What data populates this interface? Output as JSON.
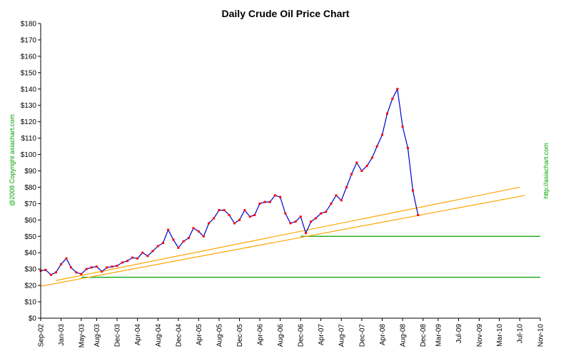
{
  "chart_data": {
    "type": "line",
    "title": "Daily Crude Oil Price Chart",
    "xlabel": "",
    "ylabel": "",
    "ylim": [
      0,
      180
    ],
    "yticks": [
      0,
      10,
      20,
      30,
      40,
      50,
      60,
      70,
      80,
      90,
      100,
      110,
      120,
      130,
      140,
      150,
      160,
      170,
      180
    ],
    "ytick_labels": [
      "$0",
      "$10",
      "$20",
      "$30",
      "$40",
      "$50",
      "$60",
      "$70",
      "$80",
      "$90",
      "$100",
      "$110",
      "$120",
      "$130",
      "$140",
      "$150",
      "$160",
      "$170",
      "$180"
    ],
    "xlim": [
      "2002-09-01",
      "2010-11-01"
    ],
    "xtick_labels": [
      "Sep-02",
      "Jan-03",
      "May-03",
      "Aug-03",
      "Dec-03",
      "Apr-04",
      "Aug-04",
      "Dec-04",
      "Apr-05",
      "Aug-05",
      "Dec-05",
      "Apr-06",
      "Aug-06",
      "Dec-06",
      "Apr-07",
      "Aug-07",
      "Dec-07",
      "Apr-08",
      "Aug-08",
      "Dec-08",
      "Mar-09",
      "Jul-09",
      "Nov-09",
      "Mar-10",
      "Jul-10",
      "Nov-10"
    ],
    "xtick_dates": [
      "2002-09-01",
      "2003-01-01",
      "2003-05-01",
      "2003-08-01",
      "2003-12-01",
      "2004-04-01",
      "2004-08-01",
      "2004-12-01",
      "2005-04-01",
      "2005-08-01",
      "2005-12-01",
      "2006-04-01",
      "2006-08-01",
      "2006-12-01",
      "2007-04-01",
      "2007-08-01",
      "2007-12-01",
      "2008-04-01",
      "2008-08-01",
      "2008-12-01",
      "2009-03-01",
      "2009-07-01",
      "2009-11-01",
      "2010-03-01",
      "2010-07-01",
      "2010-11-01"
    ],
    "grid": false,
    "legend": "none",
    "series": [
      {
        "color": "#0000cc",
        "marker_color": "#ff0000",
        "x": [
          "2002-09-01",
          "2002-10-01",
          "2002-11-01",
          "2002-12-01",
          "2003-01-01",
          "2003-02-01",
          "2003-03-01",
          "2003-04-01",
          "2003-05-01",
          "2003-06-01",
          "2003-07-01",
          "2003-08-01",
          "2003-09-01",
          "2003-10-01",
          "2003-11-01",
          "2003-12-01",
          "2004-01-01",
          "2004-02-01",
          "2004-03-01",
          "2004-04-01",
          "2004-05-01",
          "2004-06-01",
          "2004-07-01",
          "2004-08-01",
          "2004-09-01",
          "2004-10-01",
          "2004-11-01",
          "2004-12-01",
          "2005-01-01",
          "2005-02-01",
          "2005-03-01",
          "2005-04-01",
          "2005-05-01",
          "2005-06-01",
          "2005-07-01",
          "2005-08-01",
          "2005-09-01",
          "2005-10-01",
          "2005-11-01",
          "2005-12-01",
          "2006-01-01",
          "2006-02-01",
          "2006-03-01",
          "2006-04-01",
          "2006-05-01",
          "2006-06-01",
          "2006-07-01",
          "2006-08-01",
          "2006-09-01",
          "2006-10-01",
          "2006-11-01",
          "2006-12-01",
          "2007-01-01",
          "2007-02-01",
          "2007-03-01",
          "2007-04-01",
          "2007-05-01",
          "2007-06-01",
          "2007-07-01",
          "2007-08-01",
          "2007-09-01",
          "2007-10-01",
          "2007-11-01",
          "2007-12-01",
          "2008-01-01",
          "2008-02-01",
          "2008-03-01",
          "2008-04-01",
          "2008-05-01",
          "2008-06-01",
          "2008-07-01",
          "2008-08-01",
          "2008-09-01",
          "2008-10-01",
          "2008-11-01"
        ],
        "values": [
          29,
          29.5,
          26.5,
          28,
          33,
          36.5,
          31,
          28,
          27,
          30,
          31,
          31.5,
          28.5,
          31,
          31.5,
          32,
          34,
          35,
          37,
          36.5,
          40,
          38,
          41,
          44,
          46,
          54,
          48,
          43,
          47,
          49,
          55,
          53,
          50,
          58,
          61,
          66,
          66,
          63,
          58,
          60,
          66,
          62,
          63,
          70,
          71,
          71,
          75,
          74,
          64,
          58,
          59,
          62,
          52,
          59,
          61,
          64,
          65,
          70,
          75,
          72,
          80,
          88,
          95,
          90,
          93,
          98,
          105,
          112,
          125,
          134,
          140,
          117,
          104,
          78,
          63
        ]
      }
    ],
    "trendlines": [
      {
        "color": "#ffa500",
        "x": [
          "2002-12-01",
          "2010-07-01"
        ],
        "y": [
          23,
          80
        ]
      },
      {
        "color": "#ffa500",
        "x": [
          "2002-09-01",
          "2010-08-01"
        ],
        "y": [
          19.5,
          75
        ]
      }
    ],
    "horizontal_lines": [
      {
        "color": "#00a000",
        "y": 50,
        "x": [
          "2006-12-01",
          "2010-11-01"
        ]
      },
      {
        "color": "#00a000",
        "y": 25,
        "x": [
          "2003-05-01",
          "2010-11-01"
        ]
      }
    ],
    "annotations": {
      "left": "@2008 Copyright asiachart.com",
      "right": "http://asiachart.com"
    }
  }
}
